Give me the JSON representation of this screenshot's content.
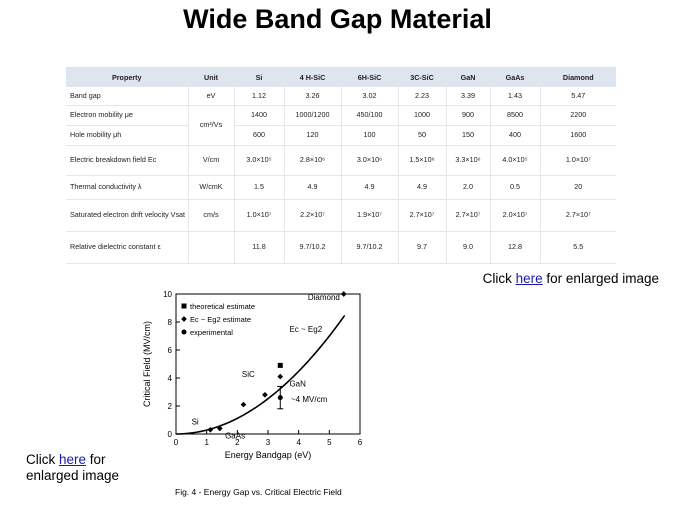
{
  "title": "Wide Band Gap Material",
  "table": {
    "headers": [
      "Property",
      "Unit",
      "Si",
      "4 H-SiC",
      "6H-SiC",
      "3C-SiC",
      "GaN",
      "GaAs",
      "Diamond"
    ],
    "rows": [
      {
        "property": "Band gap",
        "unit": "eV",
        "values": [
          "1.12",
          "3.26",
          "3.02",
          "2.23",
          "3.39",
          "1.43",
          "5.47"
        ]
      },
      {
        "property": "Electron mobility μe",
        "unit": "cm²/Vs",
        "values": [
          "1400",
          "1000/1200",
          "450/100",
          "1000",
          "900",
          "8500",
          "2200"
        ]
      },
      {
        "property": "Hole mobility μh",
        "unit": "",
        "values": [
          "600",
          "120",
          "100",
          "50",
          "150",
          "400",
          "1600"
        ]
      },
      {
        "property": "Electric breakdown field Ec",
        "unit": "V/cm",
        "values": [
          "3.0×10⁵",
          "2.8×10⁶",
          "3.0×10⁶",
          "1.5×10⁶",
          "3.3×10⁶",
          "4.0×10⁵",
          "1.0×10⁷"
        ]
      },
      {
        "property": "Thermal conductivity λ",
        "unit": "W/cmK",
        "values": [
          "1.5",
          "4.9",
          "4.9",
          "4.9",
          "2.0",
          "0.5",
          "20"
        ]
      },
      {
        "property": "Saturated electron drift velocity Vsat",
        "unit": "cm/s",
        "values": [
          "1.0×10⁷",
          "2.2×10⁷",
          "1.9×10⁷",
          "2.7×10⁷",
          "2.7×10⁷",
          "2.0×10⁷",
          "2.7×10⁷"
        ]
      },
      {
        "property": "Relative dielectric constant ε",
        "unit": "",
        "values": [
          "11.8",
          "9.7/10.2",
          "9.7/10.2",
          "9.7",
          "9.0",
          "12.8",
          "5.5"
        ]
      }
    ]
  },
  "links": {
    "right": {
      "before": "Click ",
      "link": "here",
      "after": " for enlarged image"
    },
    "left": {
      "before": "Click ",
      "link": "here",
      "after": " for enlarged image"
    }
  },
  "chart_data": {
    "type": "scatter",
    "xlabel": "Energy Bandgap (eV)",
    "ylabel": "Critical Field (MV/cm)",
    "caption": "Fig. 4 - Energy Gap vs. Critical Electric Field",
    "xlim": [
      0,
      6
    ],
    "ylim": [
      0,
      10
    ],
    "xticks": [
      "0",
      "1",
      "2",
      "3",
      "4",
      "5",
      "6"
    ],
    "yticks": [
      "0",
      "2",
      "4",
      "6",
      "8",
      "10"
    ],
    "legend": [
      "theoretical estimate",
      "Ec ~ Eg2 estimate",
      "experimental"
    ],
    "curve_label": "Ec ~ Eg2",
    "series": [
      {
        "name": "theoretical estimate",
        "marker": "square",
        "points": [
          [
            3.4,
            4.9
          ]
        ]
      },
      {
        "name": "Ec ~ Eg2 estimate",
        "marker": "diamond",
        "points": [
          [
            1.12,
            0.3
          ],
          [
            1.43,
            0.4
          ],
          [
            2.2,
            2.1
          ],
          [
            2.9,
            2.8
          ],
          [
            3.4,
            4.1
          ],
          [
            5.47,
            10.0
          ]
        ]
      },
      {
        "name": "experimental",
        "marker": "circle",
        "points": [
          [
            3.4,
            2.6
          ]
        ],
        "error": [
          [
            1.8,
            3.4
          ]
        ]
      }
    ],
    "curve": [
      [
        0,
        0
      ],
      [
        1,
        0.3
      ],
      [
        2,
        1.3
      ],
      [
        3,
        3.0
      ],
      [
        4,
        5.3
      ],
      [
        5,
        8.3
      ],
      [
        5.5,
        10.0
      ]
    ],
    "annotations": [
      {
        "text": "Si",
        "x": 0.9,
        "y": 0.9
      },
      {
        "text": "GaAs",
        "x": 1.6,
        "y": -0.1
      },
      {
        "text": "SiC",
        "x": 2.15,
        "y": 4.3
      },
      {
        "text": "GaN",
        "x": 3.7,
        "y": 3.6
      },
      {
        "text": "~4 MV/cm",
        "x": 3.75,
        "y": 2.5
      },
      {
        "text": "Diamond",
        "x": 4.3,
        "y": 9.8
      }
    ]
  }
}
